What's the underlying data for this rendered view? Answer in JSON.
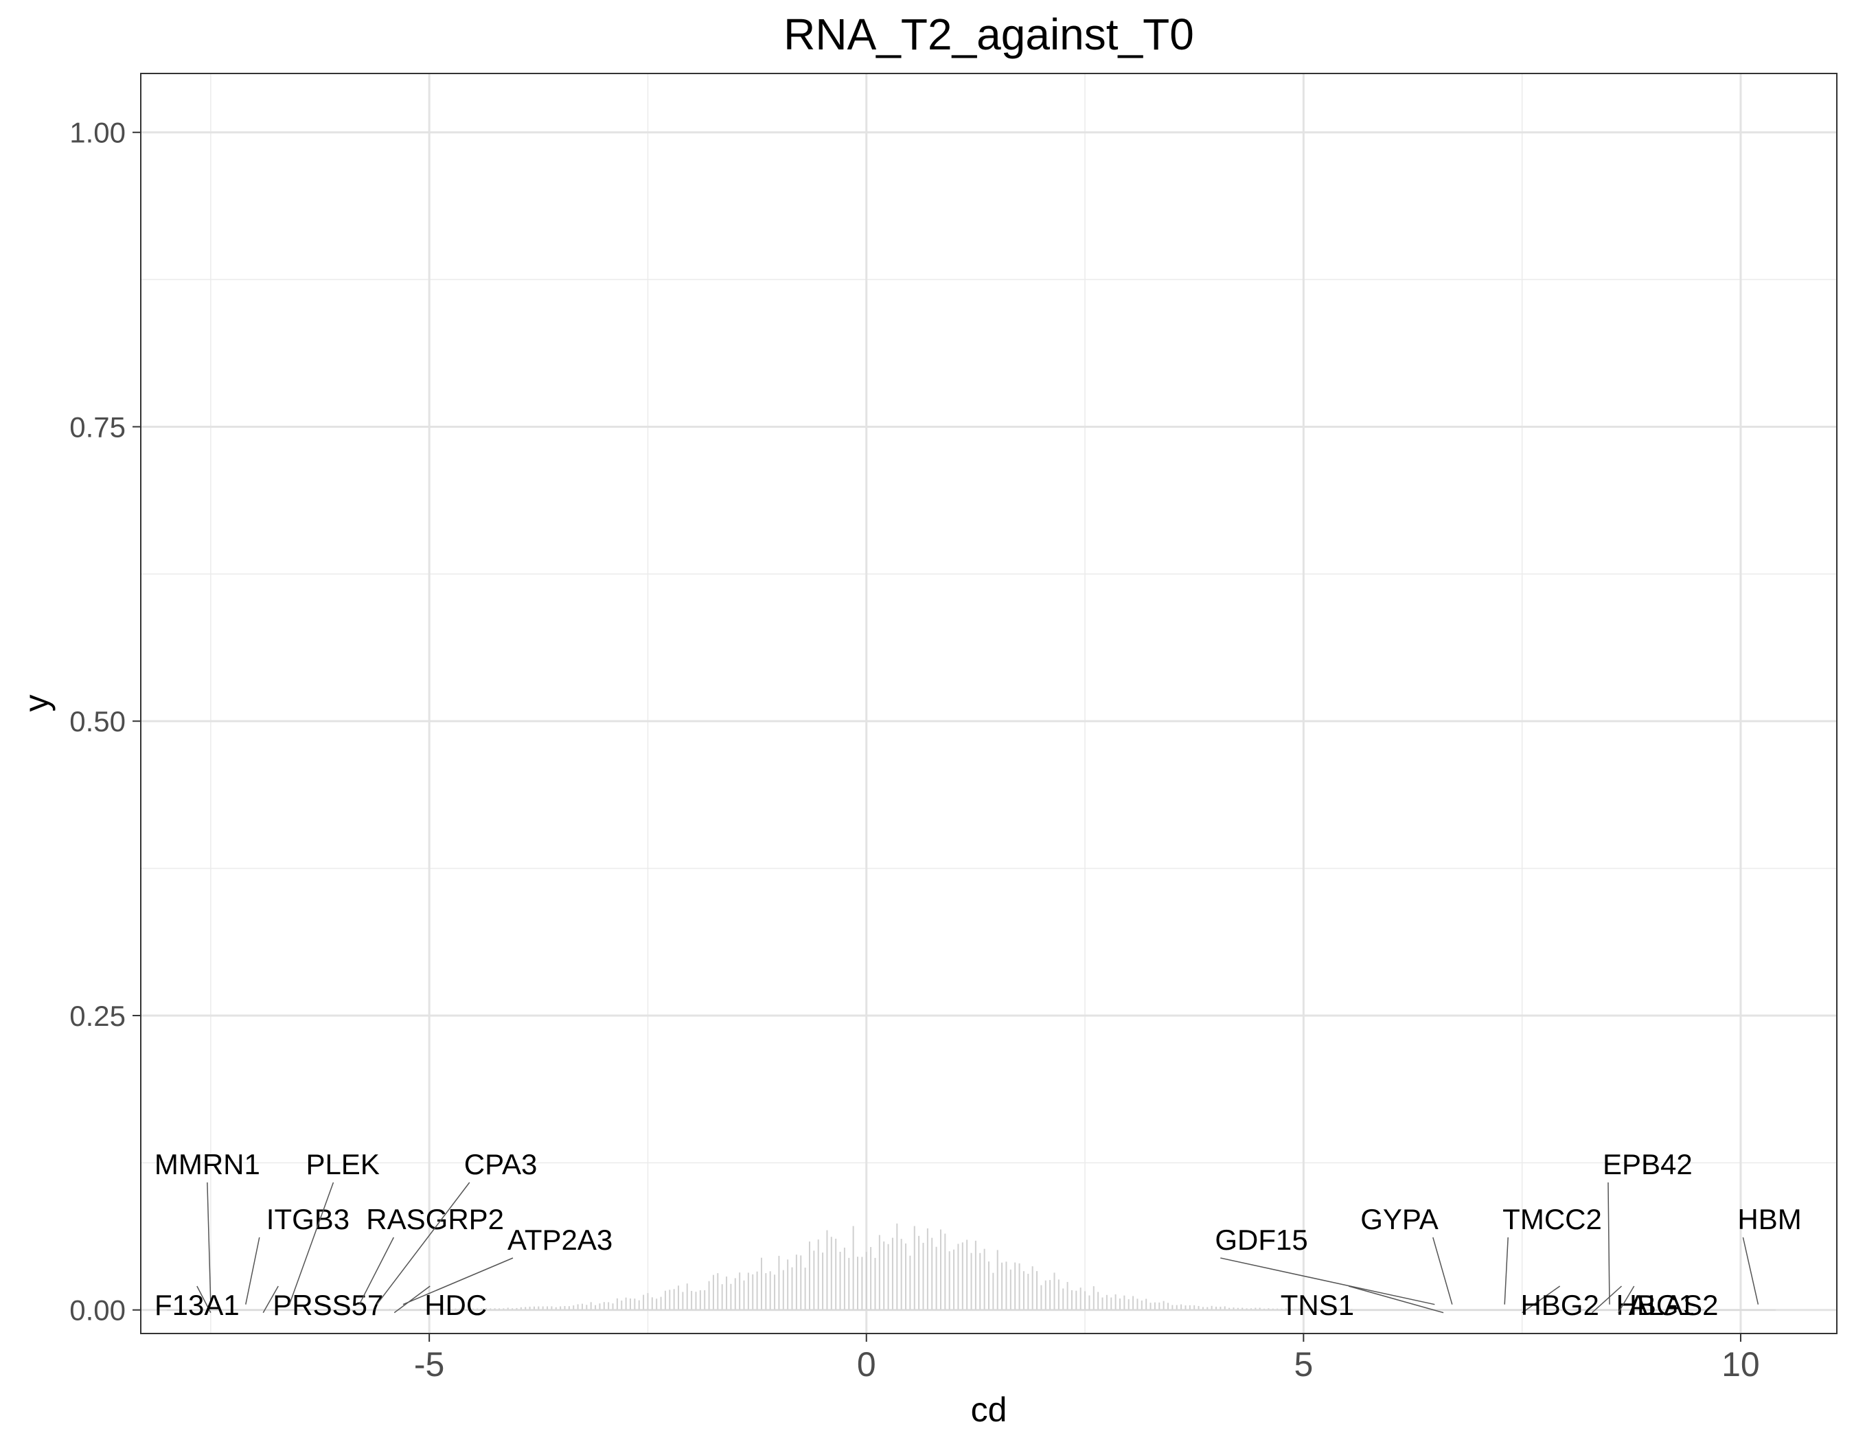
{
  "chart_data": {
    "type": "bar",
    "title": "RNA_T2_against_T0",
    "xlabel": "cd",
    "ylabel": "y",
    "xlim": [
      -8.3,
      11.1
    ],
    "ylim": [
      -0.02,
      1.05
    ],
    "x_ticks": [
      -5,
      0,
      5,
      10
    ],
    "x_tick_labels": [
      "-5",
      "0",
      "5",
      "10"
    ],
    "y_ticks": [
      0.0,
      0.25,
      0.5,
      0.75,
      1.0
    ],
    "y_tick_labels": [
      "0.00",
      "0.25",
      "0.50",
      "0.75",
      "1.00"
    ],
    "grid": true,
    "legend": "none",
    "bar_color": "#d0d0d0",
    "density": {
      "bin_width": 0.05,
      "x_range": [
        -7.6,
        8.6
      ],
      "peak_x": 0.2,
      "peak_y": 0.058,
      "sd": 1.45,
      "tail_y": 0.004
    },
    "labeled_points": [
      {
        "label": "MMRN1",
        "x": -7.5,
        "y": 0.0
      },
      {
        "label": "F13A1",
        "x": -7.5,
        "y": 0.0
      },
      {
        "label": "ITGB3",
        "x": -7.1,
        "y": 0.0
      },
      {
        "label": "PRSS57",
        "x": -6.9,
        "y": 0.0
      },
      {
        "label": "PLEK",
        "x": -6.6,
        "y": 0.0
      },
      {
        "label": "RASGRP2",
        "x": -5.8,
        "y": 0.0
      },
      {
        "label": "CPA3",
        "x": -5.6,
        "y": 0.0
      },
      {
        "label": "HDC",
        "x": -5.4,
        "y": 0.0
      },
      {
        "label": "ATP2A3",
        "x": -5.3,
        "y": 0.0
      },
      {
        "label": "GDF15",
        "x": 6.5,
        "y": 0.0
      },
      {
        "label": "TNS1",
        "x": 6.6,
        "y": 0.0
      },
      {
        "label": "GYPA",
        "x": 6.7,
        "y": 0.0
      },
      {
        "label": "TMCC2",
        "x": 7.3,
        "y": 0.0
      },
      {
        "label": "HBG2",
        "x": 7.5,
        "y": 0.0
      },
      {
        "label": "HBG1",
        "x": 8.3,
        "y": 0.0
      },
      {
        "label": "EPB42",
        "x": 8.5,
        "y": 0.0
      },
      {
        "label": "ALAS2",
        "x": 8.6,
        "y": 0.0
      },
      {
        "label": "HBM",
        "x": 10.2,
        "y": 0.0
      }
    ]
  }
}
